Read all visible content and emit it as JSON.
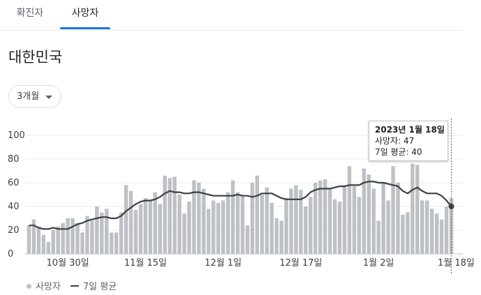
{
  "tabs": [
    {
      "label": "확진자",
      "active": false
    },
    {
      "label": "사망자",
      "active": true
    }
  ],
  "region": "대한민국",
  "range_button": {
    "label": "3개월"
  },
  "tooltip": {
    "date": "2023년 1월 18일",
    "deaths_text": "사망자: 47",
    "avg_text": "7일 평균: 40"
  },
  "legend": {
    "bars": "사망자",
    "line": "7일 평균"
  },
  "colors": {
    "bar": "#bdc1c6",
    "line": "#3c4043",
    "accent": "#1a73e8"
  },
  "chart_data": {
    "type": "bar",
    "title": "",
    "xlabel": "",
    "ylabel": "",
    "ylim": [
      0,
      100
    ],
    "y_ticks": [
      0,
      20,
      40,
      60,
      80,
      100
    ],
    "x_tick_labels": [
      "10월 30일",
      "11월 15일",
      "12월 1일",
      "12월 17일",
      "1월 2일",
      "1월 18일"
    ],
    "x_tick_index": [
      8,
      24,
      40,
      56,
      72,
      88
    ],
    "series": [
      {
        "name": "사망자",
        "type": "bar",
        "values": [
          24,
          29,
          23,
          16,
          10,
          20,
          23,
          26,
          30,
          30,
          26,
          18,
          32,
          28,
          40,
          35,
          38,
          18,
          18,
          35,
          58,
          53,
          37,
          42,
          47,
          45,
          52,
          42,
          66,
          64,
          65,
          50,
          34,
          44,
          62,
          60,
          55,
          38,
          45,
          43,
          45,
          52,
          62,
          52,
          49,
          24,
          60,
          66,
          50,
          56,
          43,
          30,
          28,
          47,
          55,
          58,
          54,
          40,
          48,
          60,
          62,
          63,
          55,
          46,
          44,
          58,
          74,
          57,
          48,
          72,
          67,
          55,
          28,
          60,
          45,
          74,
          60,
          33,
          35,
          76,
          75,
          45,
          45,
          38,
          34,
          29,
          40,
          47
        ]
      },
      {
        "name": "7일 평균",
        "type": "line",
        "values": [
          24,
          24,
          22,
          21,
          21,
          22,
          21,
          21,
          21,
          23,
          25,
          26,
          28,
          29,
          30,
          31,
          31,
          30,
          30,
          32,
          36,
          39,
          42,
          44,
          45,
          45,
          46,
          48,
          51,
          53,
          52,
          52,
          51,
          51,
          52,
          52,
          51,
          50,
          49,
          49,
          49,
          49,
          49,
          50,
          49,
          49,
          48,
          49,
          51,
          51,
          51,
          49,
          47,
          46,
          46,
          46,
          46,
          48,
          52,
          54,
          55,
          55,
          55,
          56,
          57,
          57,
          58,
          58,
          58,
          60,
          61,
          61,
          60,
          60,
          59,
          58,
          57,
          53,
          51,
          54,
          56,
          53,
          51,
          51,
          51,
          49,
          45,
          40
        ]
      }
    ]
  }
}
